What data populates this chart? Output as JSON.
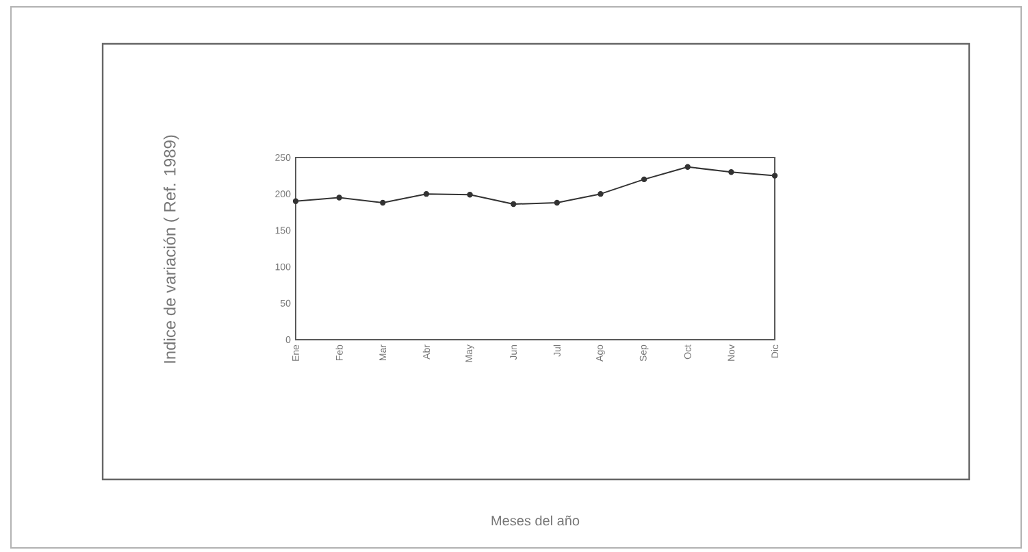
{
  "chart_data": {
    "type": "line",
    "annotations": [
      "Indice de variación ( Ref. 1989)",
      "Meses del año"
    ],
    "categories": [
      "Ene",
      "Feb",
      "Mar",
      "Abr",
      "May",
      "Jun",
      "Jul",
      "Ago",
      "Sep",
      "Oct",
      "Nov",
      "Dic"
    ],
    "values": [
      190,
      195,
      188,
      200,
      199,
      186,
      188,
      200,
      220,
      237,
      230,
      225
    ],
    "color": "#333333",
    "marker": "circle",
    "line_style": "solid",
    "ylim": [
      0,
      250
    ],
    "yticks": [
      0,
      50,
      100,
      150,
      200,
      250
    ],
    "grid": false
  }
}
